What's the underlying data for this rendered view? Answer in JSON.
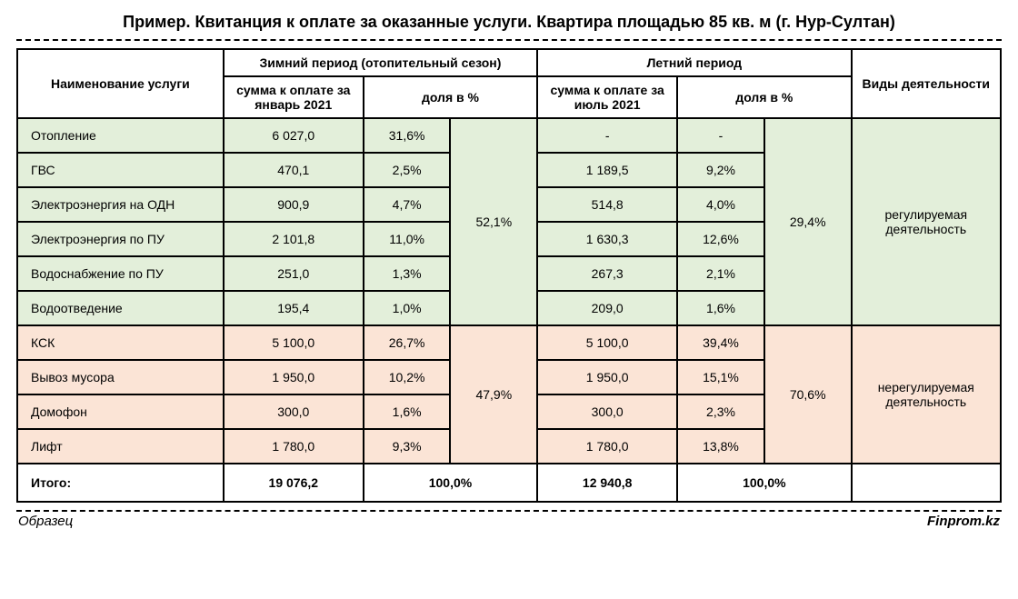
{
  "title": "Пример. Квитанция к оплате за оказанные услуги. Квартира площадью 85 кв. м (г. Нур-Султан)",
  "colors": {
    "group_regulated_bg": "#e3efda",
    "group_unregulated_bg": "#fbe4d6",
    "border": "#000000",
    "text": "#000000",
    "background": "#ffffff"
  },
  "header": {
    "service_name": "Наименование услуги",
    "winter_group": "Зимний период (отопительный сезон)",
    "summer_group": "Летний период",
    "activity_type": "Виды деятельности",
    "winter_amount": "сумма к оплате за январь 2021",
    "summer_amount": "сумма к оплате за июль 2021",
    "share_pct": "доля в %"
  },
  "groups": {
    "regulated": {
      "winter_group_pct": "52,1%",
      "summer_group_pct": "29,4%",
      "activity_label": "регулируемая деятельность"
    },
    "unregulated": {
      "winter_group_pct": "47,9%",
      "summer_group_pct": "70,6%",
      "activity_label": "нерегулируемая деятельность"
    }
  },
  "rows": [
    {
      "name": "Отопление",
      "w_sum": "6 027,0",
      "w_pct": "31,6%",
      "s_sum": "-",
      "s_pct": "-"
    },
    {
      "name": "ГВС",
      "w_sum": "470,1",
      "w_pct": "2,5%",
      "s_sum": "1 189,5",
      "s_pct": "9,2%"
    },
    {
      "name": "Электроэнергия на ОДН",
      "w_sum": "900,9",
      "w_pct": "4,7%",
      "s_sum": "514,8",
      "s_pct": "4,0%"
    },
    {
      "name": "Электроэнергия по ПУ",
      "w_sum": "2 101,8",
      "w_pct": "11,0%",
      "s_sum": "1 630,3",
      "s_pct": "12,6%"
    },
    {
      "name": "Водоснабжение по ПУ",
      "w_sum": "251,0",
      "w_pct": "1,3%",
      "s_sum": "267,3",
      "s_pct": "2,1%"
    },
    {
      "name": "Водоотведение",
      "w_sum": "195,4",
      "w_pct": "1,0%",
      "s_sum": "209,0",
      "s_pct": "1,6%"
    },
    {
      "name": "КСК",
      "w_sum": "5 100,0",
      "w_pct": "26,7%",
      "s_sum": "5 100,0",
      "s_pct": "39,4%"
    },
    {
      "name": "Вывоз мусора",
      "w_sum": "1 950,0",
      "w_pct": "10,2%",
      "s_sum": "1 950,0",
      "s_pct": "15,1%"
    },
    {
      "name": "Домофон",
      "w_sum": "300,0",
      "w_pct": "1,6%",
      "s_sum": "300,0",
      "s_pct": "2,3%"
    },
    {
      "name": "Лифт",
      "w_sum": "1 780,0",
      "w_pct": "9,3%",
      "s_sum": "1 780,0",
      "s_pct": "13,8%"
    }
  ],
  "total": {
    "label": "Итого:",
    "winter_sum": "19 076,2",
    "winter_pct": "100,0%",
    "summer_sum": "12 940,8",
    "summer_pct": "100,0%"
  },
  "footer": {
    "sample": "Образец",
    "source": "Finprom.kz"
  }
}
